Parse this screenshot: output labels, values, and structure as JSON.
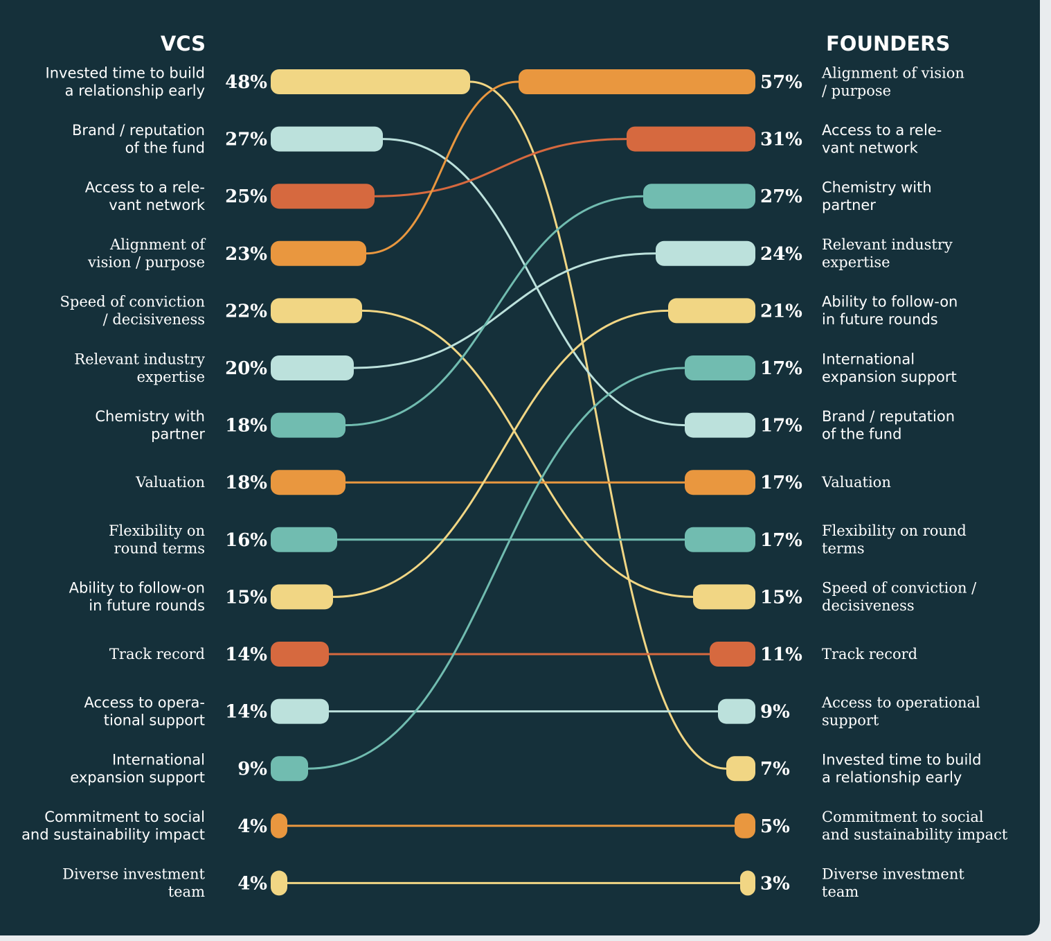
{
  "chart_data": {
    "type": "slope",
    "left_header": "VCS",
    "right_header": "FOUNDERS",
    "colors": {
      "background": "#15303a",
      "yellow": "#f1d684",
      "lightblue": "#bce1dc",
      "red": "#d6693f",
      "orange": "#e9973f",
      "teal": "#71bcb0"
    },
    "vcs": [
      {
        "label": "Invested time to build a relationship early",
        "lines": [
          "Invested time to build",
          "a relationship early"
        ],
        "pct": "48%",
        "value": 48,
        "color": "yellow",
        "font": "sans"
      },
      {
        "label": "Brand / reputation of the fund",
        "lines": [
          "Brand / reputation",
          "of the fund"
        ],
        "pct": "27%",
        "value": 27,
        "color": "lightblue",
        "font": "sans"
      },
      {
        "label": "Access to a relevant network",
        "lines": [
          "Access to a rele-",
          "vant network"
        ],
        "pct": "25%",
        "value": 25,
        "color": "red",
        "font": "sans"
      },
      {
        "label": "Alignment of vision / purpose",
        "lines": [
          "Alignment of",
          "vision / purpose"
        ],
        "pct": "23%",
        "value": 23,
        "color": "orange",
        "font": "serif"
      },
      {
        "label": "Speed of conviction / decisiveness",
        "lines": [
          "Speed of conviction",
          "/ decisiveness"
        ],
        "pct": "22%",
        "value": 22,
        "color": "yellow",
        "font": "serif"
      },
      {
        "label": "Relevant industry expertise",
        "lines": [
          "Relevant industry",
          "expertise"
        ],
        "pct": "20%",
        "value": 20,
        "color": "lightblue",
        "font": "serif"
      },
      {
        "label": "Chemistry with partner",
        "lines": [
          "Chemistry with",
          "partner"
        ],
        "pct": "18%",
        "value": 18,
        "color": "teal",
        "font": "sans"
      },
      {
        "label": "Valuation",
        "lines": [
          "Valuation"
        ],
        "pct": "18%",
        "value": 18,
        "color": "orange",
        "font": "serif"
      },
      {
        "label": "Flexibility on round terms",
        "lines": [
          "Flexibility on",
          "round terms"
        ],
        "pct": "16%",
        "value": 16,
        "color": "teal",
        "font": "serif"
      },
      {
        "label": "Ability to follow-on in future rounds",
        "lines": [
          "Ability to follow-on",
          "in future rounds"
        ],
        "pct": "15%",
        "value": 15,
        "color": "yellow",
        "font": "sans"
      },
      {
        "label": "Track record",
        "lines": [
          "Track record"
        ],
        "pct": "14%",
        "value": 14,
        "color": "red",
        "font": "serif"
      },
      {
        "label": "Access to operational support",
        "lines": [
          "Access to opera-",
          "tional support"
        ],
        "pct": "14%",
        "value": 14,
        "color": "lightblue",
        "font": "sans"
      },
      {
        "label": "International expansion support",
        "lines": [
          "International",
          "expansion support"
        ],
        "pct": "9%",
        "value": 9,
        "color": "teal",
        "font": "sans"
      },
      {
        "label": "Commitment to social and sustainability impact",
        "lines": [
          "Commitment to social",
          "and sustainability impact"
        ],
        "pct": "4%",
        "value": 4,
        "color": "orange",
        "font": "sans"
      },
      {
        "label": "Diverse investment team",
        "lines": [
          "Diverse investment",
          "team"
        ],
        "pct": "4%",
        "value": 4,
        "color": "yellow",
        "font": "serif"
      }
    ],
    "founders": [
      {
        "label": "Alignment of vision / purpose",
        "lines": [
          "Alignment of vision",
          "/ purpose"
        ],
        "pct": "57%",
        "value": 57,
        "color": "orange",
        "font": "serif"
      },
      {
        "label": "Access to a relevant network",
        "lines": [
          "Access to a rele-",
          "vant network"
        ],
        "pct": "31%",
        "value": 31,
        "color": "red",
        "font": "sans"
      },
      {
        "label": "Chemistry with partner",
        "lines": [
          "Chemistry with",
          "partner"
        ],
        "pct": "27%",
        "value": 27,
        "color": "teal",
        "font": "sans"
      },
      {
        "label": "Relevant industry expertise",
        "lines": [
          "Relevant industry",
          "expertise"
        ],
        "pct": "24%",
        "value": 24,
        "color": "lightblue",
        "font": "serif"
      },
      {
        "label": "Ability to follow-on in future rounds",
        "lines": [
          "Ability to follow-on",
          "in future rounds"
        ],
        "pct": "21%",
        "value": 21,
        "color": "yellow",
        "font": "sans"
      },
      {
        "label": "International expansion support",
        "lines": [
          "International",
          "expansion support"
        ],
        "pct": "17%",
        "value": 17,
        "color": "teal",
        "font": "sans"
      },
      {
        "label": "Brand / reputation of the fund",
        "lines": [
          "Brand / reputation",
          "of the fund"
        ],
        "pct": "17%",
        "value": 17,
        "color": "lightblue",
        "font": "sans"
      },
      {
        "label": "Valuation",
        "lines": [
          "Valuation"
        ],
        "pct": "17%",
        "value": 17,
        "color": "orange",
        "font": "serif"
      },
      {
        "label": "Flexibility on round terms",
        "lines": [
          "Flexibility on round",
          "terms"
        ],
        "pct": "17%",
        "value": 17,
        "color": "teal",
        "font": "serif"
      },
      {
        "label": "Speed of conviction / decisiveness",
        "lines": [
          "Speed of conviction /",
          "decisiveness"
        ],
        "pct": "15%",
        "value": 15,
        "color": "yellow",
        "font": "serif"
      },
      {
        "label": "Track record",
        "lines": [
          "Track record"
        ],
        "pct": "11%",
        "value": 11,
        "color": "red",
        "font": "serif"
      },
      {
        "label": "Access to operational support",
        "lines": [
          "Access to operational",
          "support"
        ],
        "pct": "9%",
        "value": 9,
        "color": "lightblue",
        "font": "serif"
      },
      {
        "label": "Invested time to build a relationship early",
        "lines": [
          "Invested time to build",
          "a relationship early"
        ],
        "pct": "7%",
        "value": 7,
        "color": "yellow",
        "font": "sans"
      },
      {
        "label": "Commitment to social and sustainability impact",
        "lines": [
          "Commitment to social",
          "and sustainability impact"
        ],
        "pct": "5%",
        "value": 5,
        "color": "orange",
        "font": "serif"
      },
      {
        "label": "Diverse investment team",
        "lines": [
          "Diverse investment",
          "team"
        ],
        "pct": "3%",
        "value": 3,
        "color": "yellow",
        "font": "serif"
      }
    ]
  }
}
